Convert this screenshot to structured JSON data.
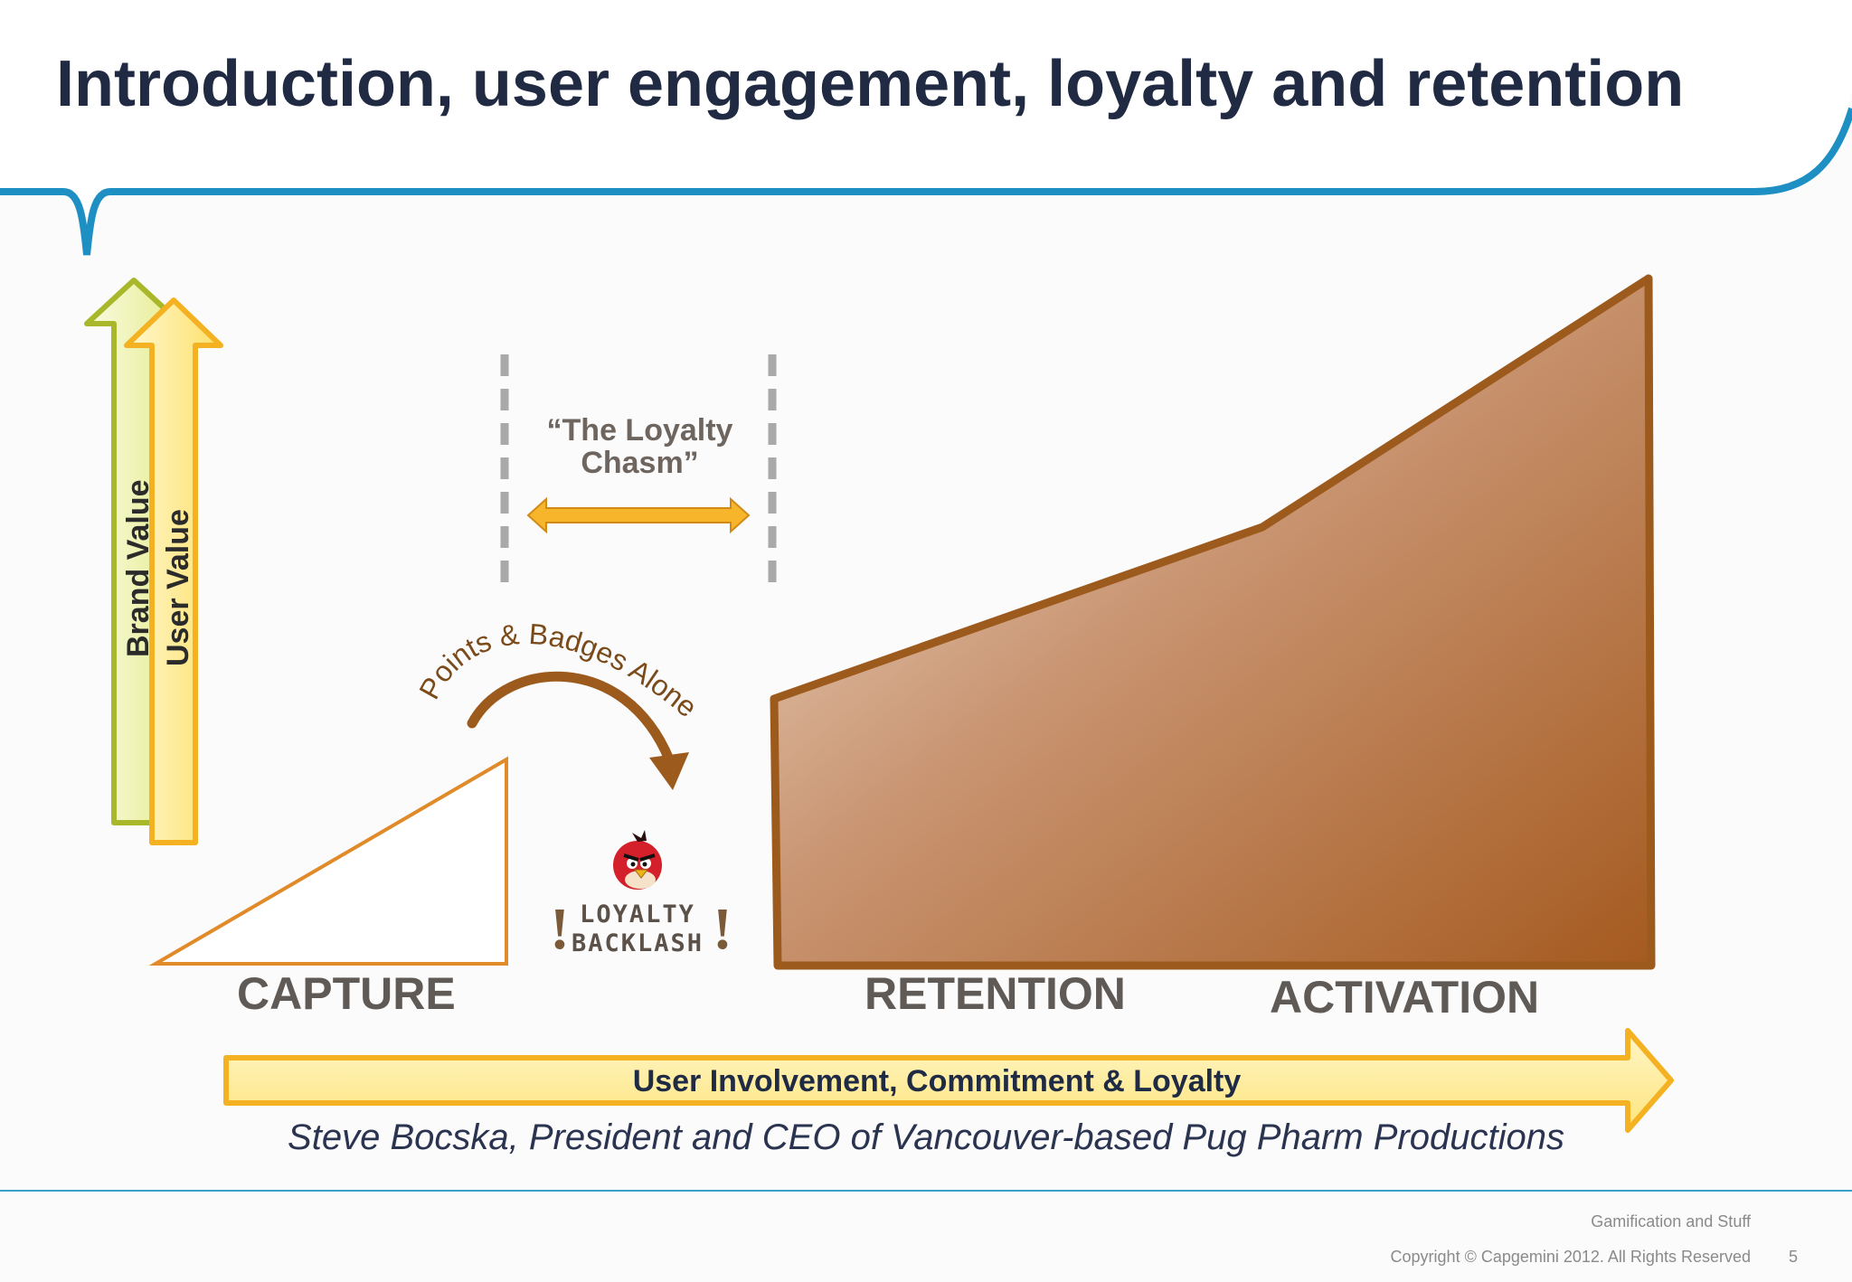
{
  "title": "Introduction, user engagement, loyalty and retention",
  "axes": {
    "brand_value": "Brand Value",
    "user_value": "User Value"
  },
  "chasm": {
    "label": "“The Loyalty Chasm”"
  },
  "curved_arrow_label": "Points & Badges Alone",
  "backlash": {
    "line1": "LOYALTY",
    "line2": "BACKLASH",
    "mark": "!"
  },
  "stages": {
    "capture": "CAPTURE",
    "retention": "RETENTION",
    "activation": "ACTIVATION"
  },
  "bottom_arrow_label": "User Involvement, Commitment & Loyalty",
  "credit": "Steve Bocska, President and CEO of Vancouver-based Pug Pharm Productions",
  "footer": {
    "subtitle": "Gamification and Stuff",
    "copyright": "Copyright © Capgemini 2012. All Rights Reserved",
    "page_number": "5"
  },
  "colors": {
    "title": "#212a43",
    "header_line": "#1d8fc2",
    "brand_arrow": "#a8b82a",
    "user_arrow": "#f4b121",
    "capture_outline": "#e08a2a",
    "retention_fill_dark": "#a65a1e",
    "retention_fill_light": "#f1dfcc",
    "stage_text": "#5f5a55"
  }
}
